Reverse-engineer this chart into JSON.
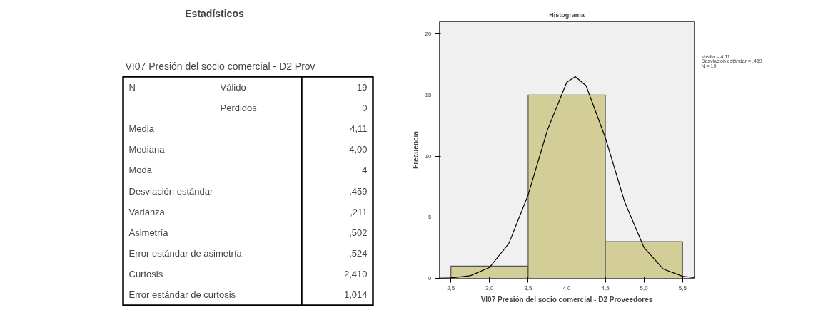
{
  "chart_data": [
    {
      "type": "other",
      "title": "Estadísticos",
      "subtitle": "VI07 Presión del socio comercial - D2 Prov",
      "annotations": [
        "N",
        "Válido",
        "19",
        "Perdidos",
        "0",
        "Media",
        "4,11",
        "Mediana",
        "4,00",
        "Moda",
        "4",
        "Desviación estándar",
        ",459",
        "Varianza",
        ",211",
        "Asimetría",
        ",502",
        "Error estándar de asimetría",
        ",524",
        "Curtosis",
        "2,410",
        "Error estándar de curtosis",
        "1,014"
      ]
    },
    {
      "type": "histogram",
      "title": "Histograma",
      "xlabel": "VI07 Presión del socio comercial - D2 Proveedores",
      "ylabel": "Frecuencia",
      "xlim": [
        2.35,
        5.65
      ],
      "ylim": [
        0,
        21
      ],
      "xticks": [
        {
          "value": 2.5,
          "label": "2,5"
        },
        {
          "value": 3.0,
          "label": "3,0"
        },
        {
          "value": 3.5,
          "label": "3,5"
        },
        {
          "value": 4.0,
          "label": "4,0"
        },
        {
          "value": 4.5,
          "label": "4,5"
        },
        {
          "value": 5.0,
          "label": "5,0"
        },
        {
          "value": 5.5,
          "label": "5,5"
        }
      ],
      "yticks": [
        0,
        5,
        10,
        15,
        20
      ],
      "grid": false,
      "annotations": [
        "Media = 4,11",
        "Desviación estándar = ,459",
        "N = 19"
      ],
      "series": [
        {
          "type": "histogram",
          "color": "#d3ce97",
          "bins": [
            2.5,
            3.5,
            4.5,
            5.5
          ],
          "values": [
            1,
            15,
            3
          ]
        },
        {
          "type": "line",
          "color": "#000000",
          "x": [
            2.35,
            2.5,
            2.75,
            3.0,
            3.25,
            3.5,
            3.75,
            4.0,
            4.11,
            4.25,
            4.5,
            4.75,
            5.0,
            5.25,
            5.5,
            5.65
          ],
          "values": [
            0.01,
            0.04,
            0.21,
            0.89,
            2.85,
            6.83,
            12.14,
            16.04,
            16.51,
            15.76,
            11.51,
            6.25,
            2.52,
            0.76,
            0.17,
            0.06
          ]
        }
      ]
    }
  ]
}
